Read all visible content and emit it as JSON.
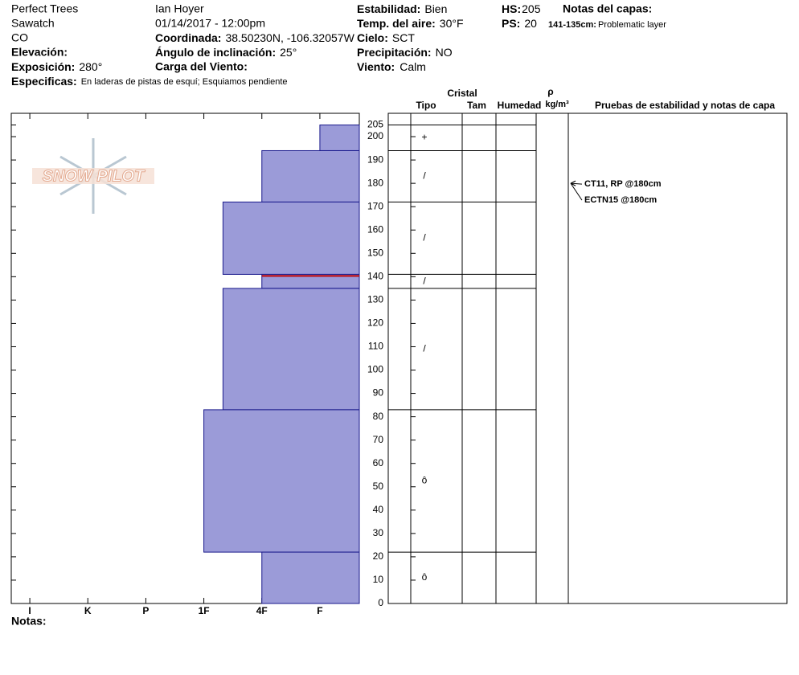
{
  "header": {
    "location": {
      "name": "Perfect Trees",
      "range": "Sawatch",
      "state": "CO"
    },
    "observer": "Ian Hoyer",
    "datetime": "01/14/2017 - 12:00pm",
    "elevation": {
      "label": "Elevación:"
    },
    "aspect": {
      "label": "Exposición:",
      "value": "280°"
    },
    "specifics": {
      "label": "Especificas:",
      "value": "En laderas de pistas de esquí; Esquiamos pendiente"
    },
    "coordinates": {
      "label": "Coordinada:",
      "value": "38.50230N, -106.32057W"
    },
    "slope": {
      "label": "Ángulo de inclinación:",
      "value": "25°"
    },
    "wind_loading": {
      "label": "Carga del Viento:"
    },
    "stability": {
      "label": "Estabilidad:",
      "value": "Bien"
    },
    "air_temp": {
      "label": "Temp. del aire:",
      "value": "30°F"
    },
    "sky": {
      "label": "Cielo:",
      "value": "SCT"
    },
    "precipitation": {
      "label": "Precipitación:",
      "value": "NO"
    },
    "wind": {
      "label": "Viento:",
      "value": "Calm"
    },
    "hs": {
      "label": "HS:",
      "value": 205
    },
    "ps": {
      "label": "PS:",
      "value": 20
    },
    "layer_notes": {
      "label": "Notas del capas:",
      "items": [
        {
          "range": "141-135cm:",
          "note": "Problematic layer"
        }
      ]
    }
  },
  "logo": "SNOW PILOT",
  "notes_label": "Notas:",
  "table_headers": {
    "crystal": "Cristal",
    "type": "Tipo",
    "size": "Tam",
    "moisture": "Humedad",
    "density_symbol": "ρ",
    "density_unit": "kg/m³",
    "tests": "Pruebas de estabilidad y notas de capa"
  },
  "chart_data": {
    "type": "snow-profile",
    "ylim": [
      0,
      210
    ],
    "yticks": [
      0,
      10,
      20,
      30,
      40,
      50,
      60,
      70,
      80,
      90,
      100,
      110,
      120,
      130,
      140,
      150,
      160,
      170,
      180,
      190,
      200,
      205
    ],
    "xlim": [
      6.32,
      0.32
    ],
    "xticks": [
      {
        "value": 6,
        "label": "I"
      },
      {
        "value": 5,
        "label": "K"
      },
      {
        "value": 4,
        "label": "P"
      },
      {
        "value": 3,
        "label": "1F"
      },
      {
        "value": 2,
        "label": "4F"
      },
      {
        "value": 1,
        "label": "F"
      }
    ],
    "color": "#9b9bd8",
    "edge_color": "#1a1a8c",
    "layers": [
      {
        "top": 205,
        "bottom": 194,
        "hardness": 1,
        "grain": "+"
      },
      {
        "top": 194,
        "bottom": 172,
        "hardness": 2,
        "grain": "/"
      },
      {
        "top": 172,
        "bottom": 141,
        "hardness": 2.67,
        "grain": "/"
      },
      {
        "top": 141,
        "bottom": 135,
        "hardness": 2,
        "grain": "/"
      },
      {
        "top": 135,
        "bottom": 83,
        "hardness": 2.67,
        "grain": "/"
      },
      {
        "top": 83,
        "bottom": 22,
        "hardness": 3,
        "grain": "ô"
      },
      {
        "top": 22,
        "bottom": 0,
        "hardness": 2,
        "grain": "ô"
      }
    ],
    "tests": [
      {
        "depth": 180,
        "label": "CT11, RP @180cm"
      },
      {
        "depth": 180,
        "label": "ECTN15 @180cm"
      }
    ]
  }
}
